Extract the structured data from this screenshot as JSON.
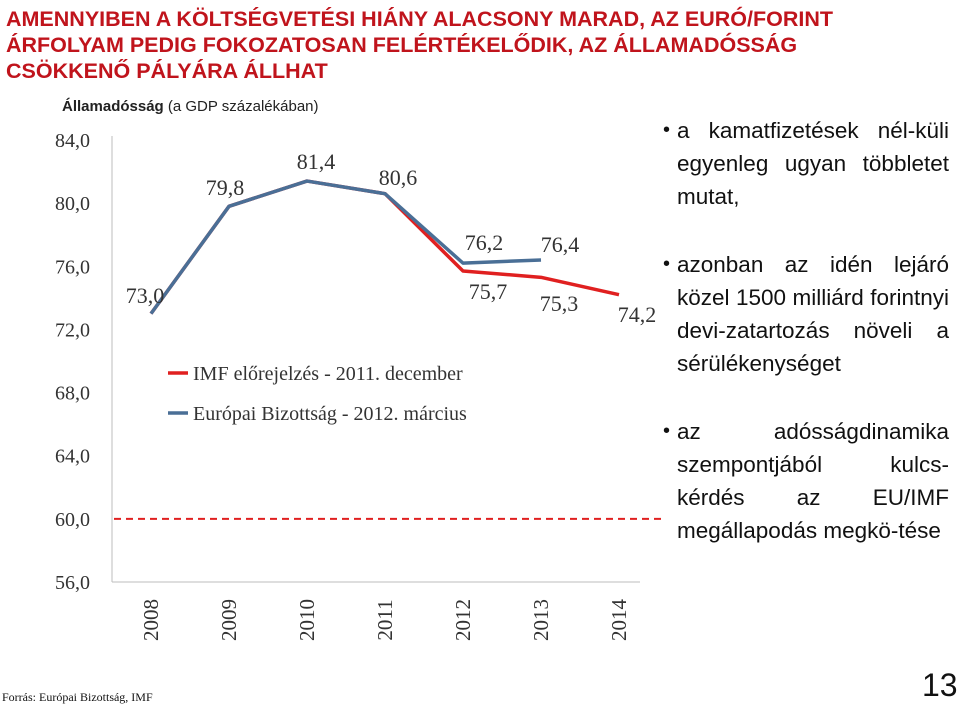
{
  "title_lines": [
    "AMENNYIBEN A KÖLTSÉGVETÉSI HIÁNY ALACSONY MARAD, AZ EURÓ/FORINT",
    "ÁRFOLYAM PEDIG FOKOZATOSAN FELÉRTÉKELŐDIK, AZ ÁLLAMADÓSSÁG",
    "CSÖKKENŐ PÁLYÁRA  ÁLLHAT"
  ],
  "subtitle": {
    "bold": "Államadósság",
    "rest": " (a GDP százalékában)"
  },
  "bullets": [
    "a kamatfizetések nél-küli egyenleg ugyan többletet mutat,",
    "azonban az idén lejáró közel 1500 milliárd forintnyi devi-zatartozás növeli a sérülékenységet",
    "az adósságdinamika szempontjából kulcs-kérdés az EU/IMF megállapodás megkö-tése"
  ],
  "source": "Forrás: Európai Bizottság, IMF",
  "page_number": "13",
  "chart_data": {
    "type": "line",
    "x": [
      "2008",
      "2009",
      "2010",
      "2011",
      "2012",
      "2013",
      "2014"
    ],
    "ylim": [
      56,
      84
    ],
    "yticks": [
      "84,0",
      "80,0",
      "76,0",
      "72,0",
      "68,0",
      "64,0",
      "60,0",
      "56,0"
    ],
    "ytick_values": [
      84,
      80,
      76,
      72,
      68,
      64,
      60,
      56
    ],
    "reference_line": 60,
    "series": [
      {
        "name": "IMF előrejelzés - 2011. december",
        "color": "#e02020",
        "values": [
          73.0,
          79.8,
          81.4,
          80.6,
          75.7,
          75.3,
          74.2
        ],
        "labels": [
          "",
          "",
          "",
          "",
          "75,7",
          "75,3",
          "74,2"
        ]
      },
      {
        "name": "Európai Bizottság - 2012. március",
        "color": "#4a6f96",
        "values": [
          73.0,
          79.8,
          81.4,
          80.6,
          76.2,
          76.4,
          null
        ],
        "labels": [
          "73,0",
          "79,8",
          "81,4",
          "80,6",
          "76,2",
          "76,4",
          ""
        ]
      }
    ],
    "grid": false,
    "legend": "inside-center"
  }
}
